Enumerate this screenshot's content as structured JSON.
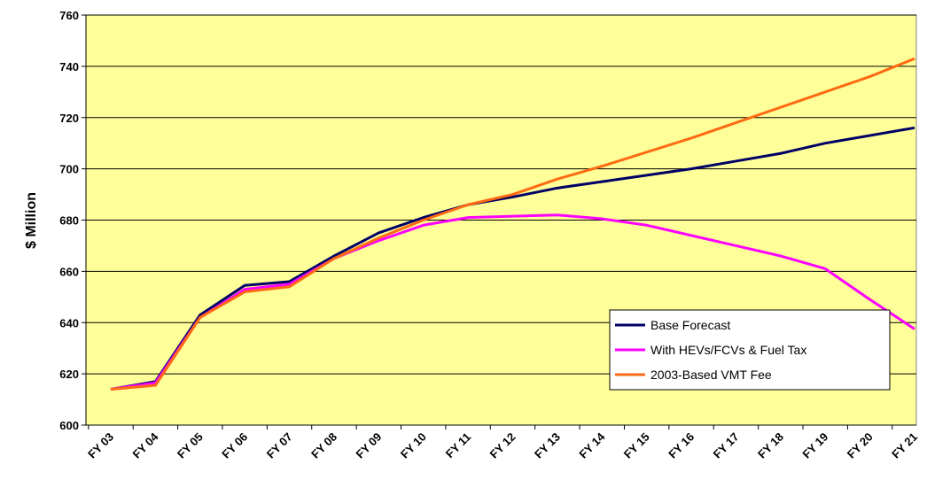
{
  "chart_data": {
    "type": "line",
    "y_label": "$ Million",
    "categories": [
      "FY 03",
      "FY 04",
      "FY 05",
      "FY 06",
      "FY 07",
      "FY 08",
      "FY 09",
      "FY 10",
      "FY 11",
      "FY 12",
      "FY 13",
      "FY 14",
      "FY 15",
      "FY 16",
      "FY 17",
      "FY 18",
      "FY 19",
      "FY 20",
      "FY 21"
    ],
    "series": [
      {
        "name": "Base Forecast",
        "color": "#000066",
        "values": [
          614,
          617,
          643,
          654.5,
          656,
          666,
          675,
          681,
          686,
          689,
          692.5,
          695,
          697.5,
          700,
          703,
          706,
          710,
          713,
          716
        ]
      },
      {
        "name": "With HEVs/FCVs & Fuel Tax",
        "color": "#ff00ff",
        "values": [
          614,
          616.5,
          642,
          653,
          655,
          665,
          672,
          678,
          681,
          681.5,
          682,
          680.5,
          678,
          674,
          670,
          666,
          661,
          649,
          637.5
        ]
      },
      {
        "name": "2003-Based VMT Fee",
        "color": "#ff6a13",
        "values": [
          614,
          615.5,
          642,
          652,
          654,
          665,
          673,
          680,
          686,
          690,
          696,
          701,
          706.5,
          712,
          718,
          724,
          730,
          736,
          743
        ]
      }
    ],
    "ylim": [
      600,
      760
    ],
    "yticks": [
      600,
      620,
      640,
      660,
      680,
      700,
      720,
      740,
      760
    ],
    "grid": true,
    "legend": "lower right",
    "background": "#ffff99"
  }
}
